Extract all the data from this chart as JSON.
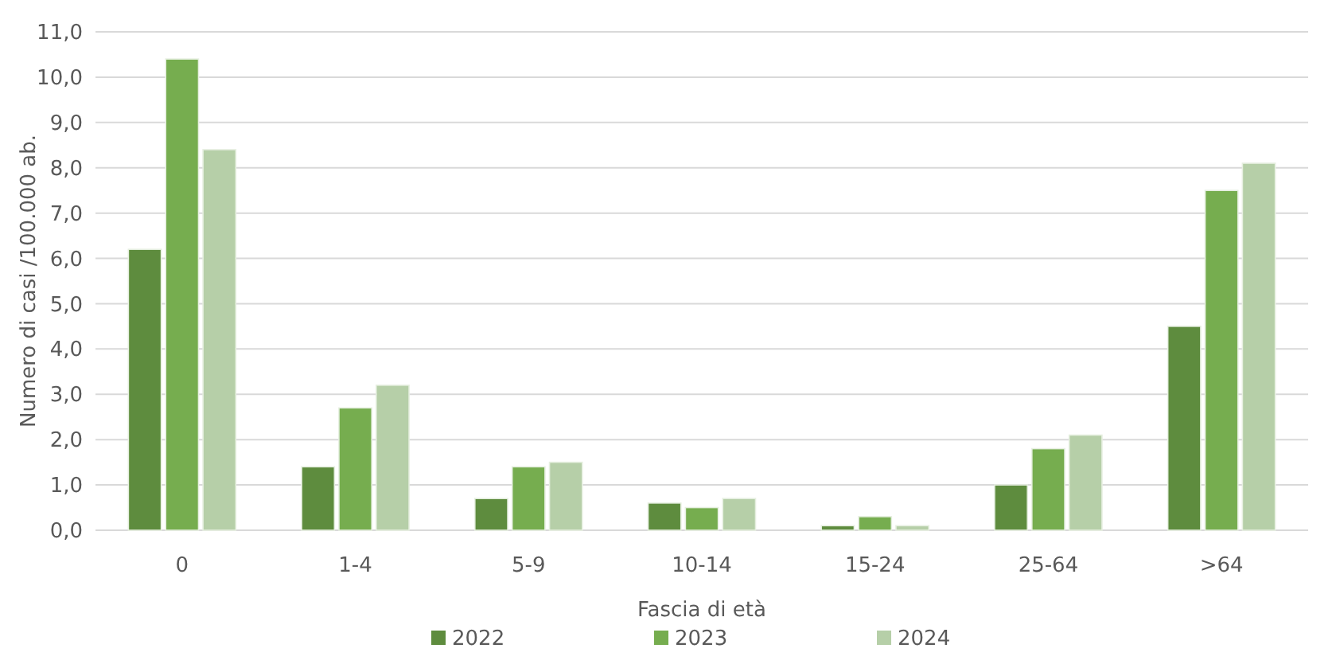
{
  "chart_data": {
    "type": "bar",
    "xlabel": "Fascia di età",
    "ylabel": "Numero di casi /100.000 ab.",
    "categories": [
      "0",
      "1-4",
      "5-9",
      "10-14",
      "15-24",
      "25-64",
      ">64"
    ],
    "series": [
      {
        "name": "2022",
        "color": "#5e8c3e",
        "values": [
          6.2,
          1.4,
          0.7,
          0.6,
          0.1,
          1.0,
          4.5
        ]
      },
      {
        "name": "2023",
        "color": "#76ad4f",
        "values": [
          10.4,
          2.7,
          1.4,
          0.5,
          0.3,
          1.8,
          7.5
        ]
      },
      {
        "name": "2024",
        "color": "#b6cfa8",
        "values": [
          8.4,
          3.2,
          1.5,
          0.7,
          0.1,
          2.1,
          8.1
        ]
      }
    ],
    "ylim": [
      0,
      11
    ],
    "yticks": [
      {
        "value": 0,
        "label": "0,0"
      },
      {
        "value": 1,
        "label": "1,0"
      },
      {
        "value": 2,
        "label": "2,0"
      },
      {
        "value": 3,
        "label": "3,0"
      },
      {
        "value": 4,
        "label": "4,0"
      },
      {
        "value": 5,
        "label": "5,0"
      },
      {
        "value": 6,
        "label": "6,0"
      },
      {
        "value": 7,
        "label": "7,0"
      },
      {
        "value": 8,
        "label": "8,0"
      },
      {
        "value": 9,
        "label": "9,0"
      },
      {
        "value": 10,
        "label": "10,0"
      },
      {
        "value": 11,
        "label": "11,0"
      }
    ],
    "grid": "y",
    "legend": "bottom"
  }
}
